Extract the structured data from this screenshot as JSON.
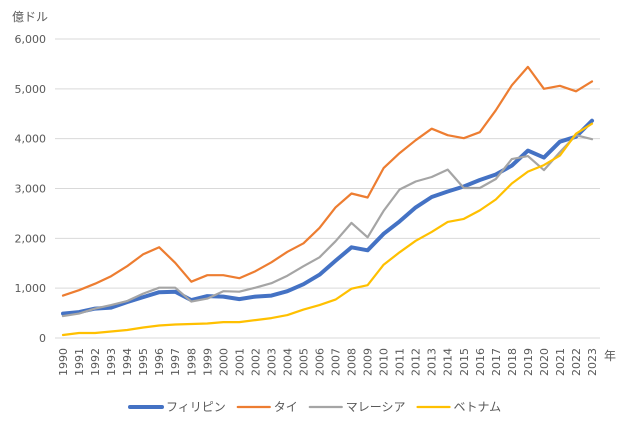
{
  "chart_data": {
    "type": "line",
    "ylabel": "億ドル",
    "xlabel": "年",
    "ylim": [
      0,
      6000
    ],
    "yticks": [
      0,
      1000,
      2000,
      3000,
      4000,
      5000,
      6000
    ],
    "ytick_labels": [
      "0",
      "1,000",
      "2,000",
      "3,000",
      "4,000",
      "5,000",
      "6,000"
    ],
    "grid": true,
    "legend_position": "bottom",
    "categories": [
      "1990",
      "1991",
      "1992",
      "1993",
      "1994",
      "1995",
      "1996",
      "1997",
      "1998",
      "1999",
      "2000",
      "2001",
      "2002",
      "2003",
      "2004",
      "2005",
      "2006",
      "2007",
      "2008",
      "2009",
      "2010",
      "2011",
      "2012",
      "2013",
      "2014",
      "2015",
      "2016",
      "2017",
      "2018",
      "2019",
      "2020",
      "2021",
      "2022",
      "2023"
    ],
    "series": [
      {
        "name": "フィリピン",
        "color": "#4472c4",
        "width": 4,
        "values": [
          490,
          520,
          590,
          610,
          720,
          820,
          920,
          930,
          760,
          840,
          830,
          780,
          830,
          850,
          940,
          1080,
          1270,
          1550,
          1820,
          1760,
          2090,
          2340,
          2620,
          2830,
          2940,
          3040,
          3170,
          3280,
          3460,
          3760,
          3620,
          3940,
          4040,
          4360
        ]
      },
      {
        "name": "タイ",
        "color": "#ed7d31",
        "width": 2.2,
        "values": [
          850,
          960,
          1090,
          1240,
          1440,
          1680,
          1820,
          1510,
          1130,
          1260,
          1260,
          1200,
          1340,
          1520,
          1730,
          1900,
          2210,
          2620,
          2900,
          2820,
          3410,
          3710,
          3970,
          4200,
          4070,
          4010,
          4130,
          4570,
          5070,
          5440,
          5000,
          5060,
          4950,
          5150
        ]
      },
      {
        "name": "マレーシア",
        "color": "#a5a5a5",
        "width": 2.2,
        "values": [
          440,
          490,
          590,
          660,
          740,
          890,
          1010,
          1010,
          730,
          790,
          940,
          930,
          1010,
          1100,
          1250,
          1440,
          1620,
          1940,
          2310,
          2020,
          2550,
          2980,
          3140,
          3230,
          3380,
          3010,
          3010,
          3190,
          3590,
          3650,
          3370,
          3730,
          4070,
          3990
        ]
      },
      {
        "name": "ベトナム",
        "color": "#ffc000",
        "width": 2.2,
        "values": [
          60,
          100,
          100,
          130,
          160,
          210,
          250,
          270,
          280,
          290,
          320,
          320,
          360,
          400,
          460,
          570,
          660,
          770,
          990,
          1060,
          1470,
          1720,
          1950,
          2130,
          2330,
          2390,
          2560,
          2780,
          3100,
          3340,
          3470,
          3660,
          4100,
          4300
        ]
      }
    ]
  }
}
